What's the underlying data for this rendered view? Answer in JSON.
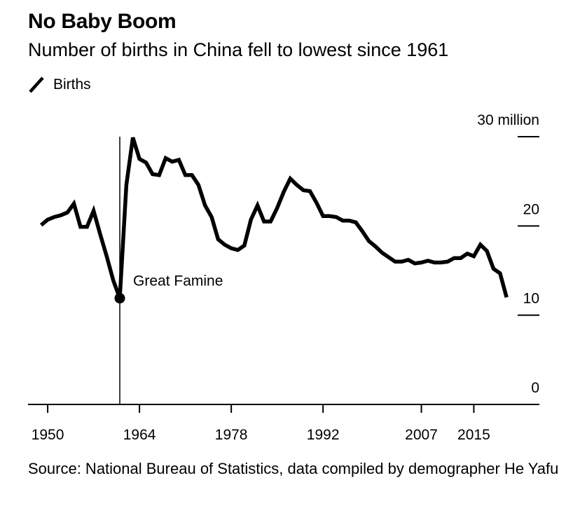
{
  "chart_data": {
    "type": "line",
    "title": "No Baby Boom",
    "subtitle": "Number of births in China fell to lowest since 1961",
    "series": [
      {
        "name": "Births",
        "color": "#000000",
        "x": [
          1949,
          1950,
          1951,
          1952,
          1953,
          1954,
          1955,
          1956,
          1957,
          1958,
          1959,
          1960,
          1961,
          1962,
          1963,
          1964,
          1965,
          1966,
          1967,
          1968,
          1969,
          1970,
          1971,
          1972,
          1973,
          1974,
          1975,
          1976,
          1977,
          1978,
          1979,
          1980,
          1981,
          1982,
          1983,
          1984,
          1985,
          1986,
          1987,
          1988,
          1989,
          1990,
          1991,
          1992,
          1993,
          1994,
          1995,
          1996,
          1997,
          1998,
          1999,
          2000,
          2001,
          2002,
          2003,
          2004,
          2005,
          2006,
          2007,
          2008,
          2009,
          2010,
          2011,
          2012,
          2013,
          2014,
          2015,
          2016,
          2017,
          2018,
          2019,
          2020
        ],
        "values": [
          20.1,
          20.7,
          21.0,
          21.2,
          21.5,
          22.5,
          19.9,
          19.9,
          21.7,
          19.1,
          16.6,
          13.9,
          11.9,
          24.6,
          29.9,
          27.5,
          27.1,
          25.8,
          25.7,
          27.6,
          27.2,
          27.4,
          25.7,
          25.7,
          24.6,
          22.3,
          21.0,
          18.5,
          17.9,
          17.5,
          17.3,
          17.8,
          20.7,
          22.3,
          20.5,
          20.5,
          22.0,
          23.8,
          25.3,
          24.6,
          24.0,
          23.9,
          22.6,
          21.1,
          21.1,
          21.0,
          20.6,
          20.6,
          20.4,
          19.4,
          18.3,
          17.7,
          17.0,
          16.5,
          16.0,
          16.0,
          16.2,
          15.8,
          15.9,
          16.1,
          15.9,
          15.9,
          16.0,
          16.4,
          16.4,
          16.9,
          16.6,
          17.9,
          17.2,
          15.2,
          14.7,
          12.0
        ]
      }
    ],
    "ylim": [
      0,
      30
    ],
    "xlim": [
      1947,
      2025
    ],
    "x_ticks": [
      {
        "value": 1950,
        "label": "1950"
      },
      {
        "value": 1964,
        "label": "1964"
      },
      {
        "value": 1978,
        "label": "1978"
      },
      {
        "value": 1992,
        "label": "1992"
      },
      {
        "value": 2007,
        "label": "2007"
      },
      {
        "value": 2015,
        "label": "2015"
      }
    ],
    "y_ticks": [
      {
        "value": 0,
        "label": "0"
      },
      {
        "value": 10,
        "label": "10"
      },
      {
        "value": 20,
        "label": "20"
      },
      {
        "value": 30,
        "label": "30 million"
      }
    ],
    "annotation": {
      "label": "Great Famine",
      "x": 1961,
      "y": 11.9
    },
    "legend": "top-left",
    "grid": false,
    "source": "Source: National Bureau of Statistics, data compiled by demographer He Yafu"
  }
}
